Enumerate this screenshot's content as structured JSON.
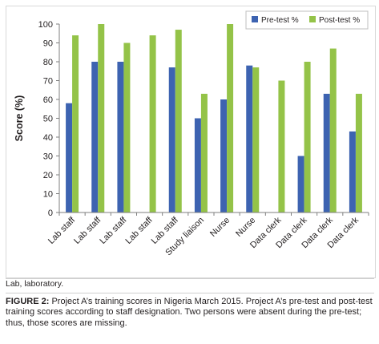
{
  "chart_data": {
    "type": "bar",
    "ylabel": "Score (%)",
    "xlabel": "",
    "ylim": [
      0,
      100
    ],
    "yticks": [
      0,
      10,
      20,
      30,
      40,
      50,
      60,
      70,
      80,
      90,
      100
    ],
    "grid": false,
    "legend_position": "top-right",
    "categories": [
      "Lab staff",
      "Lab staff",
      "Lab staff",
      "Lab staff",
      "Lab staff",
      "Study liaison",
      "Nurse",
      "Nurse",
      "Data clerk",
      "Data clerk",
      "Data clerk",
      "Data clerk"
    ],
    "series": [
      {
        "name": "Pre-test %",
        "color": "#3d63b1",
        "values": [
          58,
          80,
          80,
          null,
          77,
          50,
          60,
          78,
          null,
          30,
          63,
          43
        ]
      },
      {
        "name": "Post-test %",
        "color": "#94c348",
        "values": [
          94,
          100,
          90,
          94,
          97,
          63,
          100,
          77,
          70,
          80,
          87,
          63
        ]
      }
    ]
  },
  "footnote": "Lab, laboratory.",
  "caption": {
    "lead": "FIGURE 2:",
    "text": " Project A’s training scores in Nigeria March 2015. Project A’s pre-test and post-test training scores according to staff designation. Two persons were absent during the pre-test; thus, those scores are missing."
  }
}
